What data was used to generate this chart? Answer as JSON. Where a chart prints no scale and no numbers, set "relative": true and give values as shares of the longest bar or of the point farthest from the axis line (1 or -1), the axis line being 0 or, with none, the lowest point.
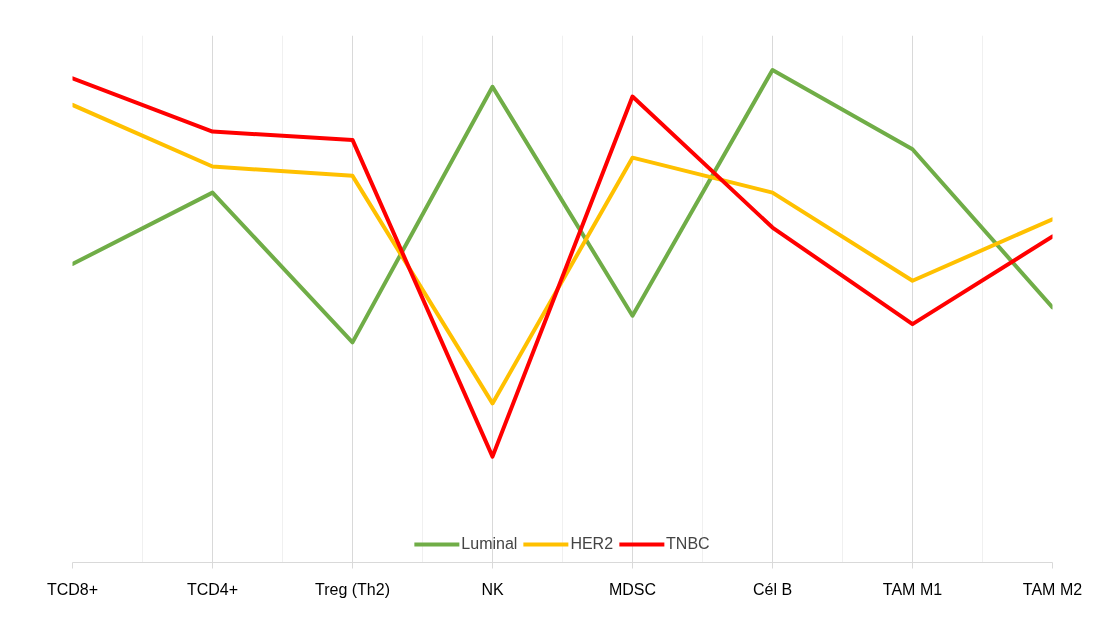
{
  "chart_data": {
    "type": "line",
    "relative": true,
    "grid": "x",
    "legend": "bottom",
    "categories": [
      "TCD8+",
      "TCD4+",
      "Treg (Th2)",
      "NK",
      "MDSC",
      "Cél B",
      "TAM M1",
      "TAM M2"
    ],
    "series": [
      {
        "name": "Luminal",
        "color": "#70ad47",
        "values": [
          0.606,
          0.751,
          0.447,
          0.966,
          0.501,
          1.0,
          0.839,
          0.518
        ]
      },
      {
        "name": "HER2",
        "color": "#ffc000",
        "values": [
          0.929,
          0.804,
          0.785,
          0.323,
          0.822,
          0.751,
          0.572,
          0.697
        ]
      },
      {
        "name": "TNBC",
        "color": "#ff0000",
        "values": [
          0.983,
          0.875,
          0.858,
          0.215,
          0.946,
          0.68,
          0.484,
          0.662
        ]
      }
    ]
  }
}
